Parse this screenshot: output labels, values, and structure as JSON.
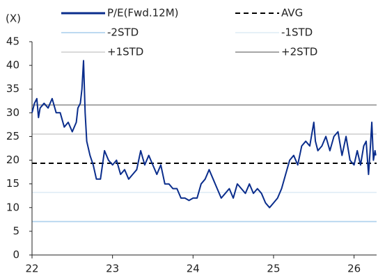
{
  "chart_data": {
    "type": "line",
    "y_unit": "(X)",
    "xlim": [
      22,
      26.28
    ],
    "xticks": [
      22,
      23,
      24,
      25,
      26
    ],
    "ylim": [
      0,
      45
    ],
    "yticks": [
      0,
      5,
      10,
      15,
      20,
      25,
      30,
      35,
      40,
      45
    ],
    "series": [
      {
        "name": "P/E(Fwd.12M)",
        "color": "#0a2d8c",
        "x": [
          22.0,
          22.03,
          22.06,
          22.08,
          22.1,
          22.15,
          22.2,
          22.25,
          22.3,
          22.35,
          22.4,
          22.45,
          22.5,
          22.55,
          22.57,
          22.6,
          22.62,
          22.64,
          22.66,
          22.68,
          22.72,
          22.76,
          22.8,
          22.85,
          22.9,
          22.95,
          23.0,
          23.05,
          23.1,
          23.15,
          23.2,
          23.25,
          23.3,
          23.35,
          23.4,
          23.45,
          23.5,
          23.55,
          23.6,
          23.65,
          23.7,
          23.75,
          23.8,
          23.85,
          23.9,
          23.95,
          24.0,
          24.05,
          24.1,
          24.15,
          24.2,
          24.25,
          24.3,
          24.35,
          24.4,
          24.45,
          24.5,
          24.55,
          24.6,
          24.65,
          24.7,
          24.75,
          24.8,
          24.85,
          24.9,
          24.95,
          25.0,
          25.05,
          25.1,
          25.15,
          25.2,
          25.25,
          25.3,
          25.35,
          25.4,
          25.45,
          25.5,
          25.52,
          25.55,
          25.6,
          25.65,
          25.7,
          25.75,
          25.8,
          25.85,
          25.9,
          25.95,
          26.0,
          26.04,
          26.08,
          26.12,
          26.15,
          26.18,
          26.2,
          26.22,
          26.24,
          26.26,
          26.27
        ],
        "values": [
          30,
          32,
          33,
          29,
          31,
          32,
          31,
          33,
          30,
          30,
          27,
          28,
          26,
          28,
          31,
          32,
          35,
          41,
          30,
          24,
          21,
          19,
          16,
          16,
          22,
          20,
          19,
          20,
          17,
          18,
          16,
          17,
          18,
          22,
          19,
          21,
          19,
          17,
          19,
          15,
          15,
          14,
          14,
          12,
          12,
          11.5,
          12,
          12,
          15,
          16,
          18,
          16,
          14,
          12,
          13,
          14,
          12,
          15,
          14,
          13,
          15,
          13,
          14,
          13,
          11,
          10,
          11,
          12,
          14,
          17,
          20,
          21,
          19,
          23,
          24,
          23,
          28,
          24,
          22,
          23,
          25,
          22,
          25,
          26,
          21,
          25,
          20,
          19,
          22,
          19,
          23,
          24,
          17,
          22,
          28,
          20,
          22,
          21
        ]
      }
    ],
    "reference_lines": [
      {
        "name": "AVG",
        "value": 19.35,
        "color": "#000000",
        "dashed": true
      },
      {
        "name": "-2STD",
        "value": 7.05,
        "color": "#bcd9f0",
        "dashed": false
      },
      {
        "name": "-1STD",
        "value": 13.2,
        "color": "#e6f0f7",
        "dashed": false
      },
      {
        "name": "+1STD",
        "value": 25.5,
        "color": "#d9d9d9",
        "dashed": false
      },
      {
        "name": "+2STD",
        "value": 31.65,
        "color": "#a6a6a6",
        "dashed": false
      }
    ]
  }
}
